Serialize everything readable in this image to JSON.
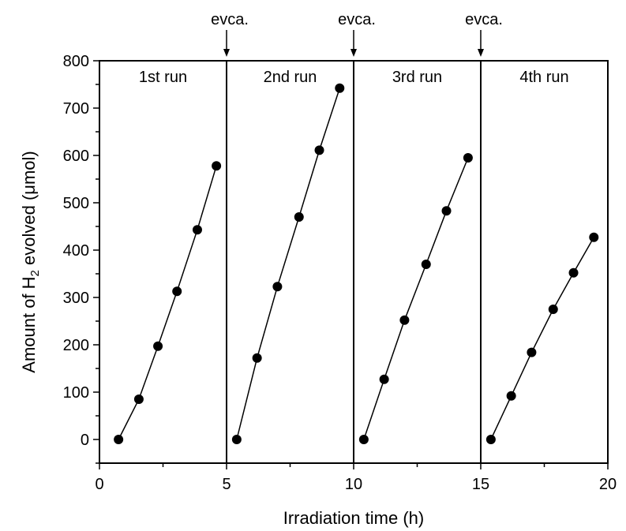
{
  "chart_data": {
    "type": "scatter",
    "xlabel": "Irradiation time (h)",
    "ylabel_parts": {
      "prefix": "Amount of H",
      "subscript": "2",
      "suffix": " evolved (μmol)"
    },
    "xlim": [
      0,
      20
    ],
    "ylim": [
      -50,
      800
    ],
    "x_ticks": [
      0,
      5,
      10,
      15,
      20
    ],
    "y_ticks": [
      0,
      100,
      200,
      300,
      400,
      500,
      600,
      700,
      800
    ],
    "x_minor_ticks": [
      2.5,
      7.5,
      12.5,
      17.5
    ],
    "y_minor_ticks": [
      -50,
      50,
      150,
      250,
      350,
      450,
      550,
      650,
      750
    ],
    "run_boundaries": [
      5,
      10,
      15
    ],
    "evacuation_label": "evca.",
    "marker_color": "#000000",
    "line_color": "#000000",
    "series": [
      {
        "name": "1st run",
        "x": [
          0.75,
          1.55,
          2.3,
          3.05,
          3.85,
          4.6
        ],
        "y": [
          0,
          85,
          197,
          313,
          443,
          578
        ]
      },
      {
        "name": "2nd run",
        "x": [
          5.4,
          6.2,
          7.0,
          7.85,
          8.65,
          9.45
        ],
        "y": [
          0,
          172,
          323,
          470,
          611,
          742
        ]
      },
      {
        "name": "3rd run",
        "x": [
          10.4,
          11.2,
          12.0,
          12.85,
          13.65,
          14.5
        ],
        "y": [
          0,
          127,
          252,
          370,
          483,
          595
        ]
      },
      {
        "name": "4th run",
        "x": [
          15.4,
          16.2,
          17.0,
          17.85,
          18.65,
          19.45
        ],
        "y": [
          0,
          92,
          184,
          275,
          352,
          427
        ]
      }
    ]
  }
}
